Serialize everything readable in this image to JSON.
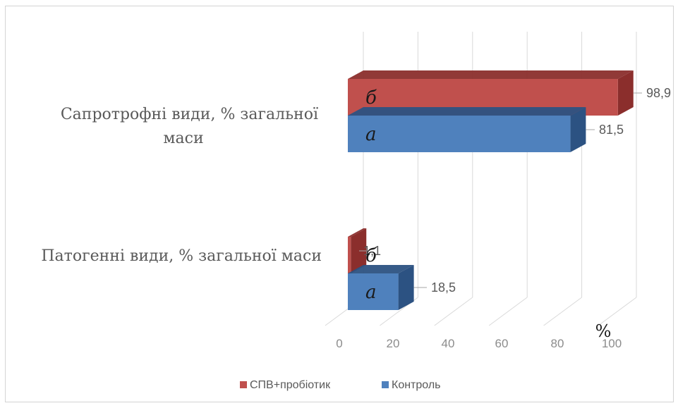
{
  "chart_data": {
    "type": "bar",
    "orientation": "horizontal",
    "3d": true,
    "categories": [
      "Сапротрофні види, % загальної маси",
      "Патогенні види, % загальної маси"
    ],
    "category_lines": [
      [
        "Сапротрофні види, % загальної",
        "маси"
      ],
      [
        "Патогенні види, % загальної маси"
      ]
    ],
    "series": [
      {
        "name": "СПВ+пробіотик",
        "color": "#c0504d",
        "side_color": "#8b2e2c",
        "values": [
          98.9,
          1.1
        ],
        "data_labels": [
          "98,9",
          "1,1"
        ],
        "letters": [
          "б",
          "б"
        ]
      },
      {
        "name": "Контроль",
        "color": "#4f81bd",
        "side_color": "#2c5282",
        "values": [
          81.5,
          18.5
        ],
        "data_labels": [
          "81,5",
          "18,5"
        ],
        "letters": [
          "а",
          "а"
        ]
      }
    ],
    "xlim": [
      0,
      100
    ],
    "x_ticks": [
      "0",
      "20",
      "40",
      "60",
      "80",
      "100"
    ],
    "x_unit_label": "%",
    "grid": true,
    "legend_position": "bottom"
  }
}
